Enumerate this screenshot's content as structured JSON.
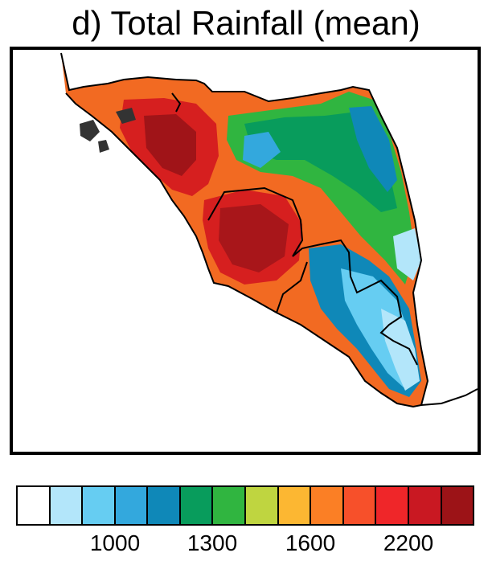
{
  "title": "d) Total Rainfall (mean)",
  "colorbar": {
    "colors": [
      "#ffffff",
      "#b3e6fa",
      "#66cdf2",
      "#33a8dd",
      "#0f88b8",
      "#089c5c",
      "#30b540",
      "#bfd540",
      "#fcb732",
      "#fb7f25",
      "#f7502a",
      "#ef2629",
      "#c91822",
      "#9c1317"
    ],
    "tick_labels": [
      "1000",
      "1300",
      "1600",
      "2200"
    ],
    "tick_boundaries": [
      2,
      5,
      8,
      12
    ]
  },
  "map": {
    "land_color": "#e84020",
    "wet_core_color": "#c41c1c",
    "dry_zone_colors": [
      "#30b540",
      "#0f88b8",
      "#33a8dd",
      "#66cdf2",
      "#b3e6fa"
    ],
    "border_color": "#000000"
  }
}
